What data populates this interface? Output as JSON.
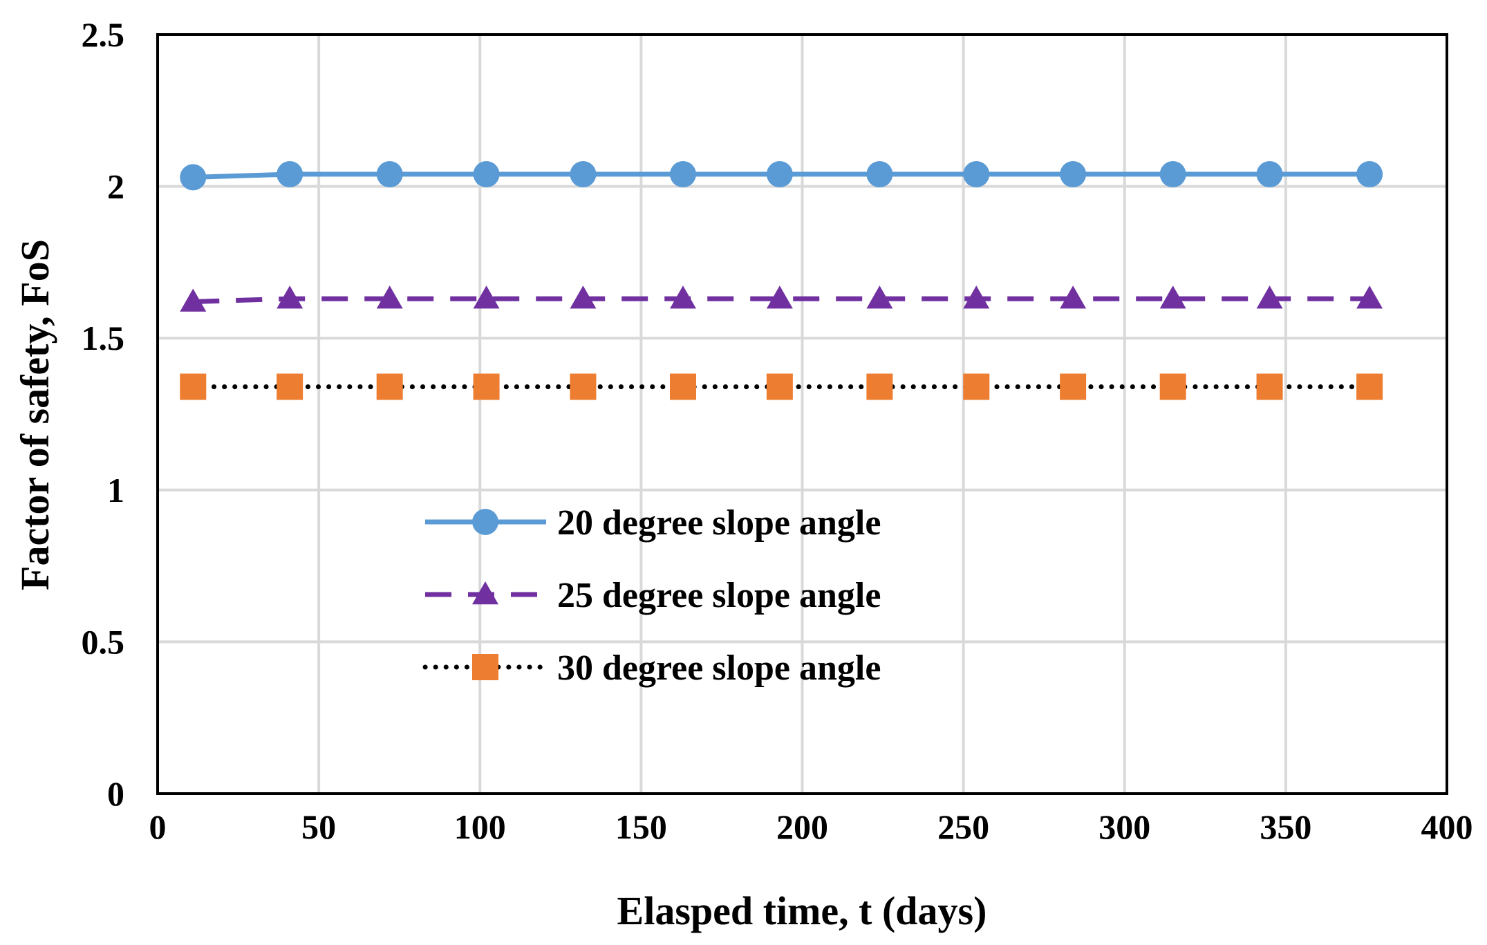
{
  "chart_data": {
    "type": "line",
    "title": "",
    "xlabel": "Elasped time, t (days)",
    "ylabel": "Factor of safety, FoS",
    "xlim": [
      0,
      400
    ],
    "ylim": [
      0,
      2.5
    ],
    "xticks": [
      0,
      50,
      100,
      150,
      200,
      250,
      300,
      350,
      400
    ],
    "xtick_labels": [
      "0",
      "50",
      "100",
      "150",
      "200",
      "250",
      "300",
      "350",
      "400"
    ],
    "yticks": [
      0,
      0.5,
      1,
      1.5,
      2,
      2.5
    ],
    "ytick_labels": [
      "0",
      "0.5",
      "1",
      "1.5",
      "2",
      "2.5"
    ],
    "grid": true,
    "legend_position": "center-left",
    "x": [
      11,
      41,
      72,
      102,
      132,
      163,
      193,
      224,
      254,
      284,
      315,
      345,
      376
    ],
    "series": [
      {
        "name": "20 degree slope angle",
        "color": "#5B9BD5",
        "line_style": "solid",
        "marker": "circle",
        "values": [
          2.03,
          2.04,
          2.04,
          2.04,
          2.04,
          2.04,
          2.04,
          2.04,
          2.04,
          2.04,
          2.04,
          2.04,
          2.04
        ]
      },
      {
        "name": "25 degree slope angle",
        "color": "#7030A0",
        "line_style": "dashed",
        "marker": "triangle",
        "values": [
          1.62,
          1.63,
          1.63,
          1.63,
          1.63,
          1.63,
          1.63,
          1.63,
          1.63,
          1.63,
          1.63,
          1.63,
          1.63
        ]
      },
      {
        "name": "30 degree slope angle",
        "color": "#ED7D31",
        "line_color": "#000000",
        "line_style": "dotted",
        "marker": "square",
        "values": [
          1.34,
          1.34,
          1.34,
          1.34,
          1.34,
          1.34,
          1.34,
          1.34,
          1.34,
          1.34,
          1.34,
          1.34,
          1.34
        ]
      }
    ]
  }
}
